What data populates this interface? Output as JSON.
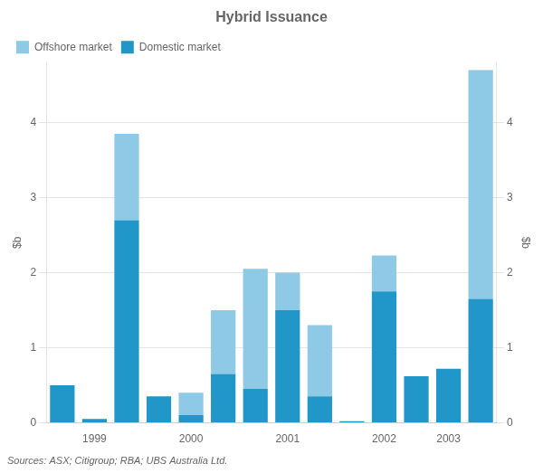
{
  "chart_data": {
    "type": "bar",
    "title": "Hybrid Issuance",
    "y_label": "$b",
    "y2_label": "$b",
    "annotations": [
      "Sources: ASX; Citigroup; RBA; UBS Australia Ltd."
    ],
    "categories": [
      null,
      "1999",
      null,
      null,
      "2000",
      null,
      null,
      "2001",
      null,
      null,
      "2002",
      null,
      "2003",
      null
    ],
    "series": [
      {
        "name": "Domestic market",
        "color": "#2196c8",
        "values": [
          0.5,
          0.05,
          2.7,
          0.35,
          0.1,
          0.65,
          0.45,
          1.5,
          0.35,
          0.02,
          1.75,
          0.62,
          0.72,
          1.65
        ]
      },
      {
        "name": "Offshore market",
        "color": "#8ecae6",
        "values": [
          0.0,
          0.0,
          1.15,
          0.0,
          0.3,
          0.85,
          1.6,
          0.5,
          0.95,
          0.0,
          0.48,
          0.0,
          0.0,
          3.05
        ]
      }
    ],
    "stacked": true,
    "ylim": [
      0,
      4.8
    ],
    "yticks": [
      0,
      1,
      2,
      3,
      4
    ],
    "y2lim": [
      0,
      4.8
    ],
    "y2ticks": [
      0,
      1,
      2,
      3,
      4
    ],
    "grid": true,
    "legend": "upper left"
  }
}
